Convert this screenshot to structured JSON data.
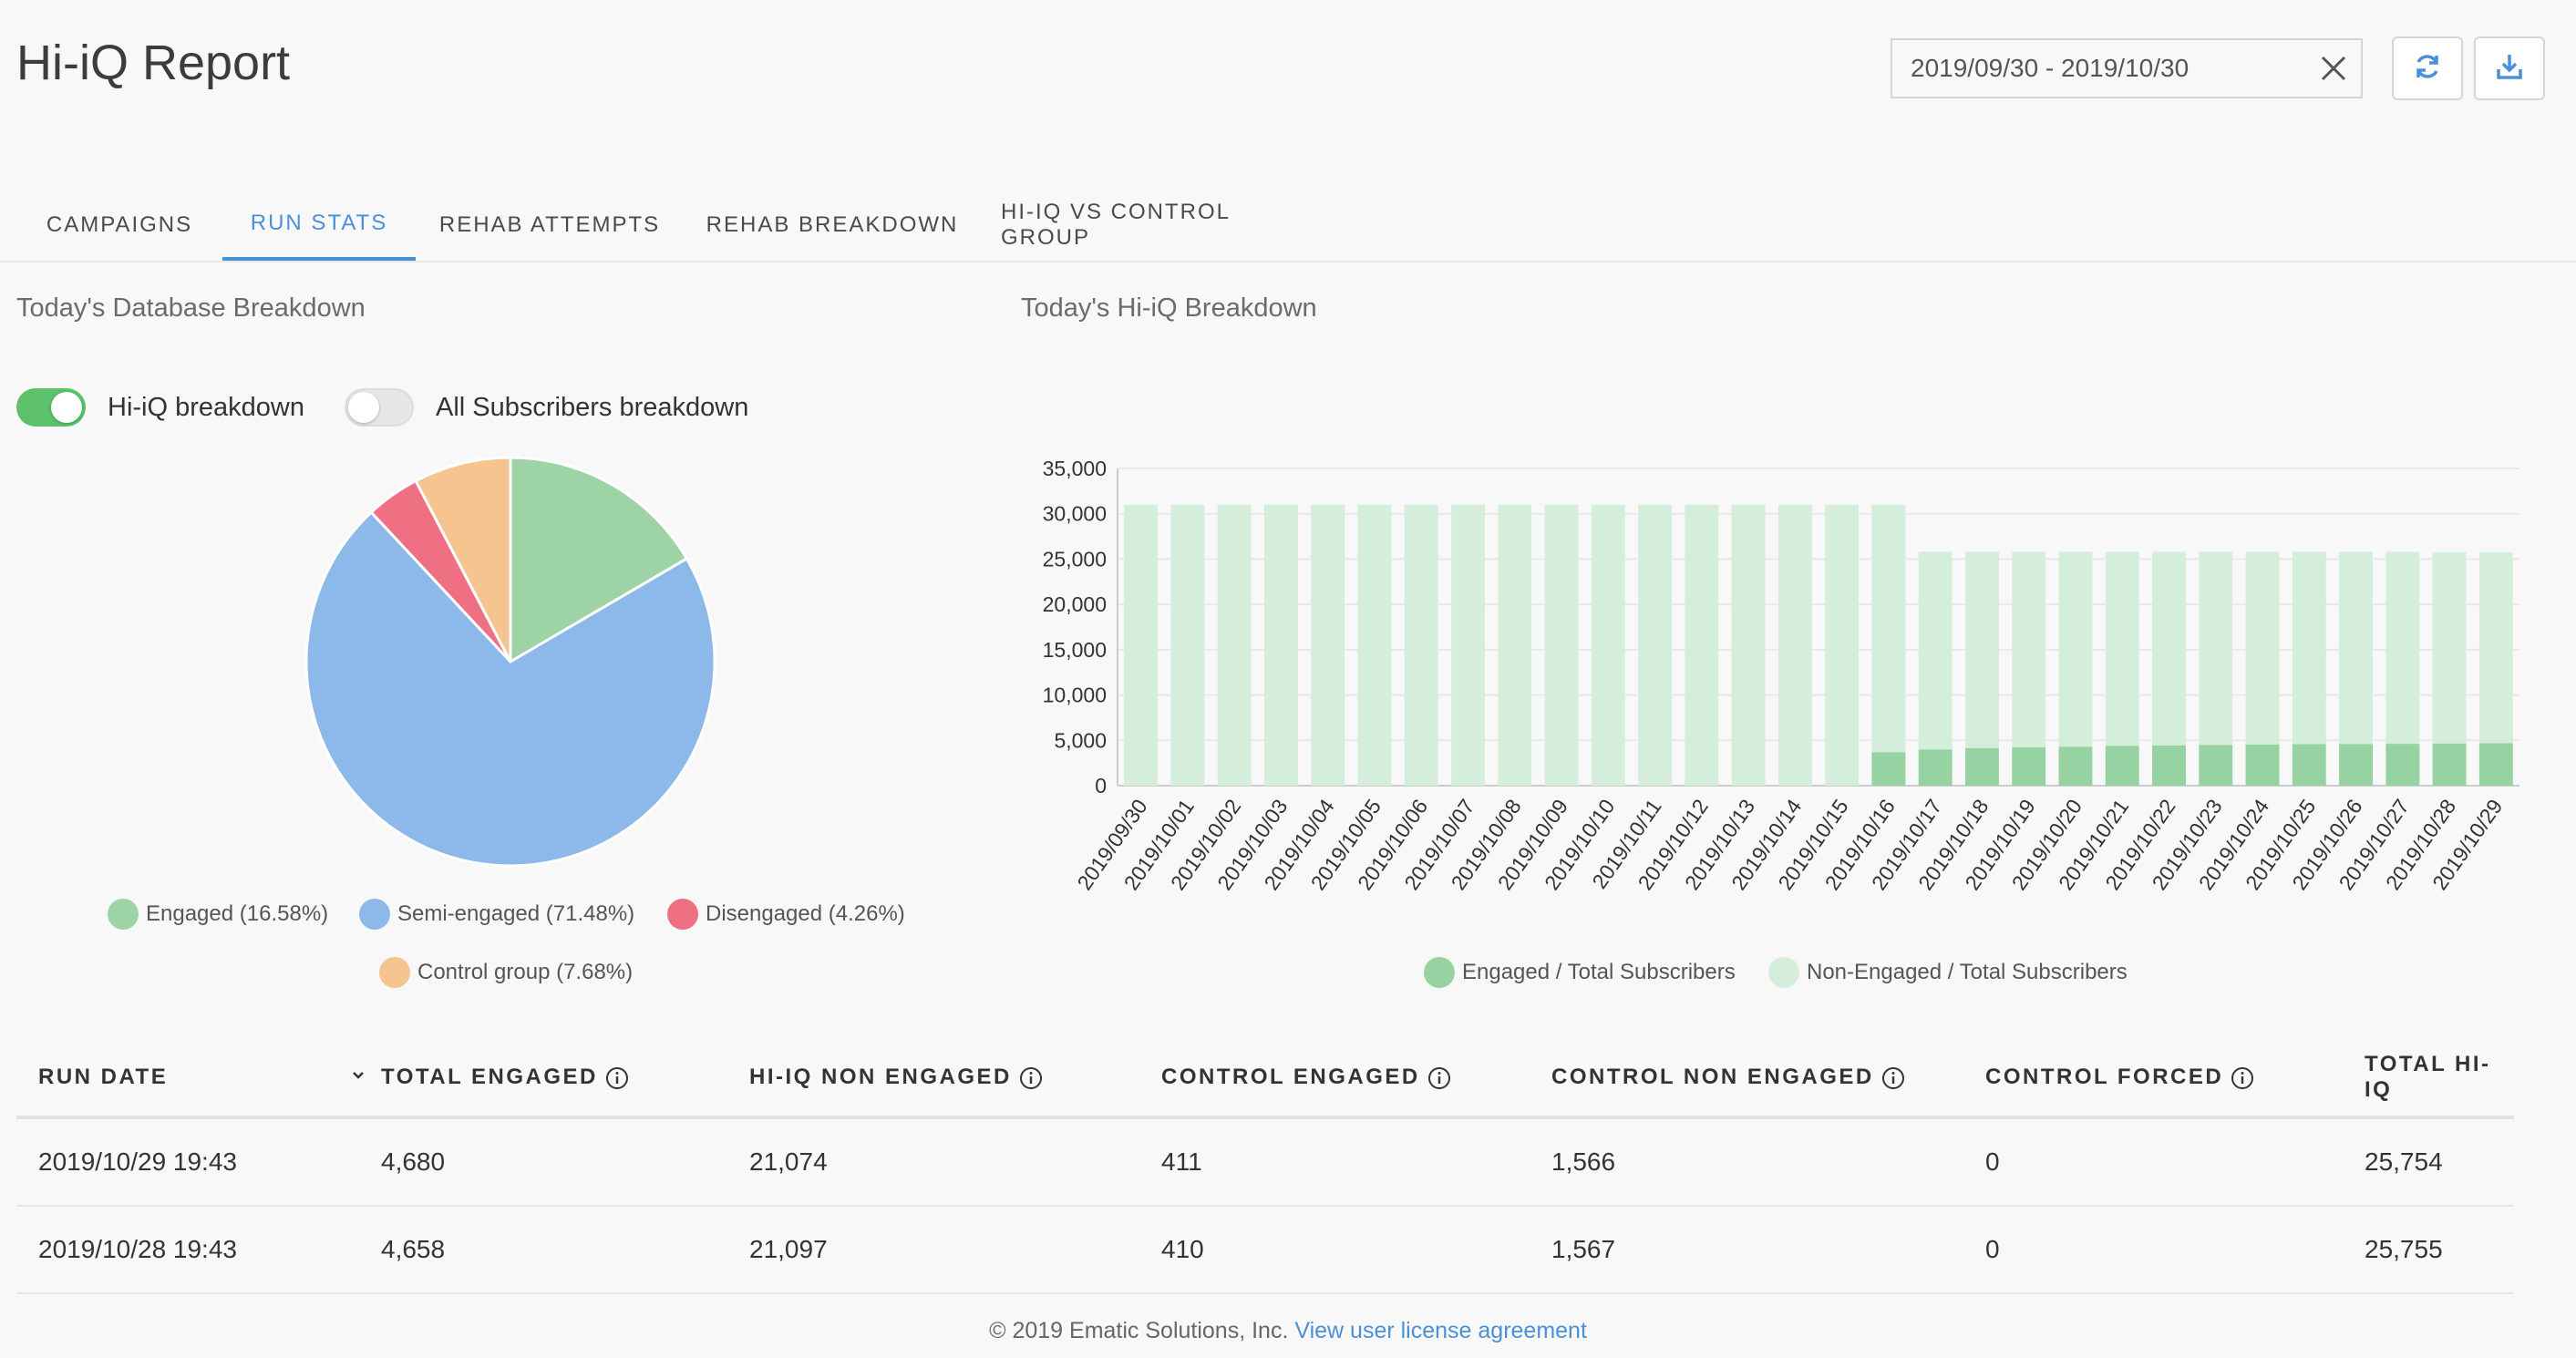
{
  "header": {
    "title": "Hi-iQ Report",
    "date_range": "2019/09/30 - 2019/10/30",
    "clear_icon": "close-icon",
    "refresh_icon": "refresh-icon",
    "download_icon": "download-icon"
  },
  "tabs": [
    {
      "label": "CAMPAIGNS",
      "active": false
    },
    {
      "label": "RUN STATS",
      "active": true
    },
    {
      "label": "REHAB ATTEMPTS",
      "active": false
    },
    {
      "label": "REHAB BREAKDOWN",
      "active": false
    },
    {
      "label": "HI-IQ VS CONTROL GROUP",
      "active": false
    }
  ],
  "database_breakdown": {
    "title": "Today's Database Breakdown",
    "toggles": [
      {
        "label": "Hi-iQ breakdown",
        "on": true
      },
      {
        "label": "All Subscribers breakdown",
        "on": false
      }
    ]
  },
  "hiiq_breakdown": {
    "title": "Today's Hi-iQ Breakdown"
  },
  "colors": {
    "accent": "#4a90d9",
    "engaged": "#9dd3a5",
    "semi_engaged": "#8cb8ea",
    "disengaged": "#ef6f83",
    "control_group": "#f6c48e",
    "bar_engaged": "#96d2a2",
    "bar_non_engaged": "#d4eedb",
    "toggle_on": "#5cc16a"
  },
  "chart_data": [
    {
      "type": "pie",
      "labels": [
        "Engaged (16.58%)",
        "Semi-engaged (71.48%)",
        "Disengaged (4.26%)",
        "Control group (7.68%)"
      ],
      "values": [
        16.58,
        71.48,
        4.26,
        7.68
      ],
      "colors": [
        "#9dd3a5",
        "#8cb8ea",
        "#ef6f83",
        "#f6c48e"
      ],
      "legend_position": "bottom"
    },
    {
      "type": "bar",
      "stacked": true,
      "categories": [
        "2019/09/30",
        "2019/10/01",
        "2019/10/02",
        "2019/10/03",
        "2019/10/04",
        "2019/10/05",
        "2019/10/06",
        "2019/10/07",
        "2019/10/08",
        "2019/10/09",
        "2019/10/10",
        "2019/10/11",
        "2019/10/12",
        "2019/10/13",
        "2019/10/14",
        "2019/10/15",
        "2019/10/16",
        "2019/10/17",
        "2019/10/18",
        "2019/10/19",
        "2019/10/20",
        "2019/10/21",
        "2019/10/22",
        "2019/10/23",
        "2019/10/24",
        "2019/10/25",
        "2019/10/26",
        "2019/10/27",
        "2019/10/28",
        "2019/10/29"
      ],
      "series": [
        {
          "name": "Engaged / Total Subscribers",
          "values": [
            0,
            0,
            0,
            0,
            0,
            0,
            0,
            0,
            0,
            0,
            0,
            0,
            0,
            0,
            0,
            0,
            3700,
            4000,
            4150,
            4250,
            4300,
            4400,
            4450,
            4500,
            4550,
            4580,
            4600,
            4620,
            4658,
            4680
          ]
        },
        {
          "name": "Non-Engaged / Total Subscribers",
          "values": [
            31000,
            31000,
            31000,
            31000,
            31000,
            31000,
            31000,
            31000,
            31000,
            31000,
            31000,
            31000,
            31000,
            31000,
            31000,
            31000,
            27300,
            21800,
            21650,
            21550,
            21500,
            21400,
            21350,
            21300,
            21250,
            21220,
            21200,
            21180,
            21097,
            21074
          ]
        }
      ],
      "y_ticks": [
        "0",
        "5,000",
        "10,000",
        "15,000",
        "20,000",
        "25,000",
        "30,000",
        "35,000"
      ],
      "ylim": [
        0,
        35000
      ],
      "grid": true,
      "legend_position": "bottom"
    }
  ],
  "table": {
    "columns": [
      {
        "label": "RUN DATE",
        "sort_icon": "chevron-down-icon"
      },
      {
        "label": "TOTAL ENGAGED",
        "info": true
      },
      {
        "label": "HI-IQ NON ENGAGED",
        "info": true
      },
      {
        "label": "CONTROL ENGAGED",
        "info": true
      },
      {
        "label": "CONTROL NON ENGAGED",
        "info": true
      },
      {
        "label": "CONTROL FORCED",
        "info": true
      },
      {
        "label": "TOTAL HI-IQ",
        "info": false
      }
    ],
    "rows": [
      [
        "2019/10/29 19:43",
        "4,680",
        "21,074",
        "411",
        "1,566",
        "0",
        "25,754"
      ],
      [
        "2019/10/28 19:43",
        "4,658",
        "21,097",
        "410",
        "1,567",
        "0",
        "25,755"
      ]
    ]
  },
  "footer": {
    "text": "© 2019 Ematic Solutions, Inc.",
    "link": "View user license agreement"
  }
}
